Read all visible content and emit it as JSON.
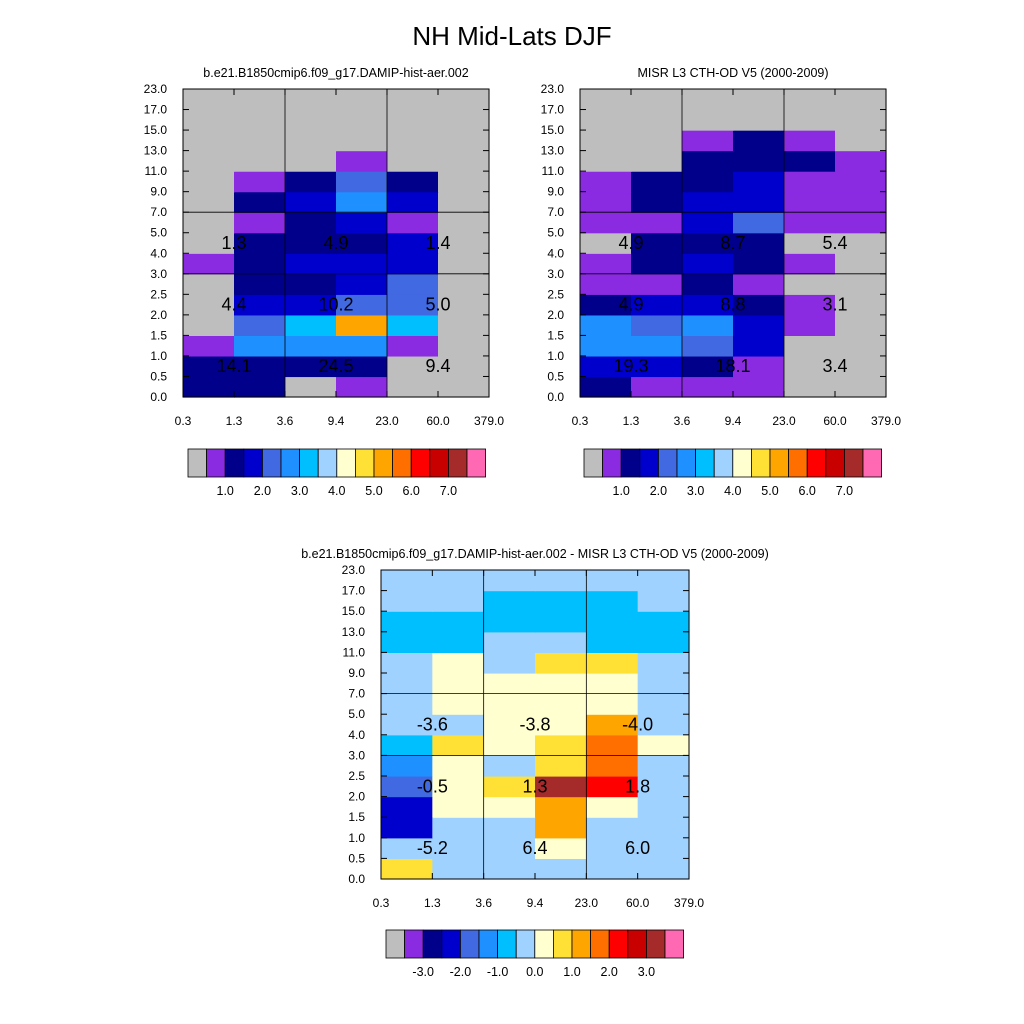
{
  "title": "NH Mid-Lats DJF",
  "chart_data": [
    {
      "type": "heatmap",
      "title": "b.e21.B1850cmip6.f09_g17.DAMIP-hist-aer.002",
      "x_ticks": [
        "0.3",
        "1.3",
        "3.6",
        "9.4",
        "23.0",
        "60.0",
        "379.0"
      ],
      "y_ticks": [
        "0.0",
        "0.5",
        "1.0",
        "1.5",
        "2.0",
        "2.5",
        "3.0",
        "4.0",
        "5.0",
        "7.0",
        "9.0",
        "11.0",
        "13.0",
        "15.0",
        "17.0",
        "23.0"
      ],
      "colorbar": {
        "colors": [
          "#BEBEBE",
          "#8A2BE2",
          "#00008B",
          "#0000CD",
          "#4169E1",
          "#1E90FF",
          "#00BFFF",
          "#A0D2FF",
          "#FFFFD0",
          "#FFE135",
          "#FFA500",
          "#FF6F00",
          "#FF0000",
          "#C80000",
          "#A52A2A",
          "#FF69B4"
        ],
        "labels": [
          "1.0",
          "2.0",
          "3.0",
          "4.0",
          "5.0",
          "6.0",
          "7.0"
        ],
        "label_boundaries": [
          2,
          4,
          6,
          8,
          10,
          12,
          14
        ]
      },
      "grid": [
        [
          2,
          2,
          0,
          1,
          0,
          0
        ],
        [
          2,
          2,
          2,
          2,
          0,
          0
        ],
        [
          1,
          5,
          5,
          5,
          1,
          0
        ],
        [
          0,
          4,
          6,
          10,
          6,
          0
        ],
        [
          0,
          3,
          3,
          4,
          4,
          0
        ],
        [
          0,
          2,
          2,
          3,
          4,
          0
        ],
        [
          1,
          2,
          3,
          3,
          3,
          0
        ],
        [
          0,
          2,
          2,
          2,
          3,
          0
        ],
        [
          0,
          1,
          2,
          3,
          1,
          0
        ],
        [
          0,
          2,
          3,
          5,
          3,
          0
        ],
        [
          0,
          1,
          2,
          4,
          2,
          0
        ],
        [
          0,
          0,
          0,
          1,
          0,
          0
        ],
        [
          0,
          0,
          0,
          0,
          0,
          0
        ],
        [
          0,
          0,
          0,
          0,
          0,
          0
        ],
        [
          0,
          0,
          0,
          0,
          0,
          0
        ]
      ],
      "box_values": [
        [
          "14.1",
          "24.5",
          "9.4"
        ],
        [
          "4.4",
          "10.2",
          "5.0"
        ],
        [
          "1.3",
          "4.9",
          "1.4"
        ]
      ]
    },
    {
      "type": "heatmap",
      "title": "MISR L3 CTH-OD V5 (2000-2009)",
      "x_ticks": [
        "0.3",
        "1.3",
        "3.6",
        "9.4",
        "23.0",
        "60.0",
        "379.0"
      ],
      "y_ticks": [
        "0.0",
        "0.5",
        "1.0",
        "1.5",
        "2.0",
        "2.5",
        "3.0",
        "4.0",
        "5.0",
        "7.0",
        "9.0",
        "11.0",
        "13.0",
        "15.0",
        "17.0",
        "23.0"
      ],
      "colorbar": {
        "colors": [
          "#BEBEBE",
          "#8A2BE2",
          "#00008B",
          "#0000CD",
          "#4169E1",
          "#1E90FF",
          "#00BFFF",
          "#A0D2FF",
          "#FFFFD0",
          "#FFE135",
          "#FFA500",
          "#FF6F00",
          "#FF0000",
          "#C80000",
          "#A52A2A",
          "#FF69B4"
        ],
        "labels": [
          "1.0",
          "2.0",
          "3.0",
          "4.0",
          "5.0",
          "6.0",
          "7.0"
        ],
        "label_boundaries": [
          2,
          4,
          6,
          8,
          10,
          12,
          14
        ]
      },
      "grid": [
        [
          2,
          1,
          1,
          1,
          0,
          0
        ],
        [
          3,
          3,
          2,
          1,
          0,
          0
        ],
        [
          5,
          5,
          4,
          3,
          0,
          0
        ],
        [
          5,
          4,
          5,
          3,
          1,
          0
        ],
        [
          2,
          3,
          3,
          2,
          1,
          0
        ],
        [
          1,
          1,
          2,
          1,
          0,
          0
        ],
        [
          1,
          2,
          3,
          2,
          1,
          0
        ],
        [
          0,
          2,
          2,
          2,
          0,
          0
        ],
        [
          1,
          1,
          3,
          4,
          1,
          1
        ],
        [
          1,
          2,
          3,
          3,
          1,
          1
        ],
        [
          1,
          2,
          2,
          3,
          1,
          1
        ],
        [
          0,
          0,
          2,
          2,
          2,
          1
        ],
        [
          0,
          0,
          1,
          2,
          1,
          0
        ],
        [
          0,
          0,
          0,
          0,
          0,
          0
        ],
        [
          0,
          0,
          0,
          0,
          0,
          0
        ]
      ],
      "box_values": [
        [
          "19.3",
          "18.1",
          "3.4"
        ],
        [
          "4.9",
          "8.8",
          "3.1"
        ],
        [
          "4.9",
          "8.7",
          "5.4"
        ]
      ]
    },
    {
      "type": "heatmap",
      "title": "b.e21.B1850cmip6.f09_g17.DAMIP-hist-aer.002 - MISR L3 CTH-OD V5 (2000-2009)",
      "x_ticks": [
        "0.3",
        "1.3",
        "3.6",
        "9.4",
        "23.0",
        "60.0",
        "379.0"
      ],
      "y_ticks": [
        "0.0",
        "0.5",
        "1.0",
        "1.5",
        "2.0",
        "2.5",
        "3.0",
        "4.0",
        "5.0",
        "7.0",
        "9.0",
        "11.0",
        "13.0",
        "15.0",
        "17.0",
        "23.0"
      ],
      "colorbar": {
        "colors": [
          "#BEBEBE",
          "#8A2BE2",
          "#00008B",
          "#0000CD",
          "#4169E1",
          "#1E90FF",
          "#00BFFF",
          "#A0D2FF",
          "#FFFFD0",
          "#FFE135",
          "#FFA500",
          "#FF6F00",
          "#FF0000",
          "#C80000",
          "#A52A2A",
          "#FF69B4"
        ],
        "labels": [
          "-3.0",
          "-2.0",
          "-1.0",
          "0.0",
          "1.0",
          "2.0",
          "3.0"
        ],
        "label_boundaries": [
          2,
          4,
          6,
          8,
          10,
          12,
          14
        ]
      },
      "grid": [
        [
          9,
          7,
          7,
          7,
          7,
          7
        ],
        [
          7,
          7,
          7,
          8,
          7,
          7
        ],
        [
          3,
          7,
          7,
          10,
          7,
          7
        ],
        [
          3,
          8,
          8,
          10,
          8,
          7
        ],
        [
          4,
          8,
          9,
          14,
          12,
          7
        ],
        [
          5,
          8,
          7,
          9,
          11,
          7
        ],
        [
          6,
          9,
          8,
          9,
          11,
          8
        ],
        [
          7,
          7,
          8,
          8,
          10,
          7
        ],
        [
          7,
          8,
          8,
          8,
          8,
          7
        ],
        [
          7,
          8,
          8,
          8,
          8,
          7
        ],
        [
          7,
          8,
          7,
          9,
          9,
          7
        ],
        [
          6,
          6,
          7,
          7,
          6,
          6
        ],
        [
          6,
          6,
          6,
          6,
          6,
          6
        ],
        [
          7,
          7,
          6,
          6,
          6,
          7
        ],
        [
          7,
          7,
          7,
          7,
          7,
          7
        ]
      ],
      "box_values": [
        [
          "-5.2",
          "6.4",
          "6.0"
        ],
        [
          "-0.5",
          "1.3",
          "1.8"
        ],
        [
          "-3.6",
          "-3.8",
          "-4.0"
        ]
      ]
    }
  ]
}
